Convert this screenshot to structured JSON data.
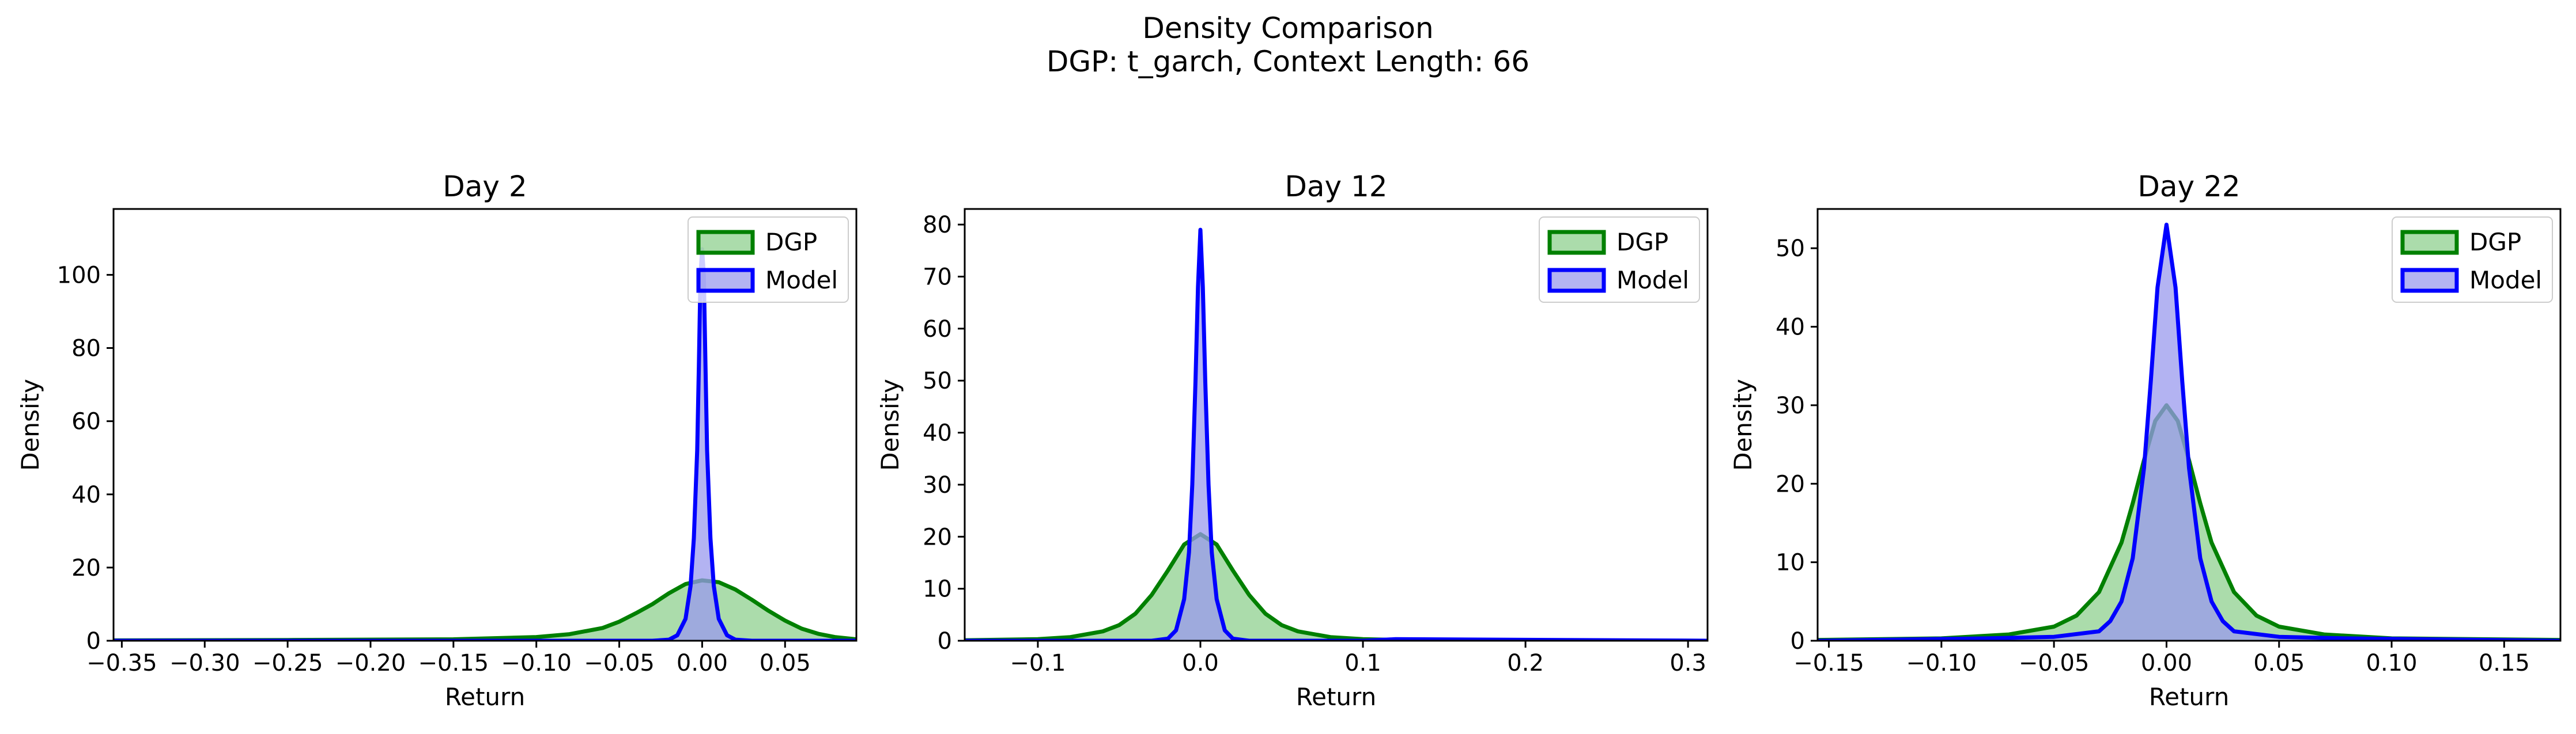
{
  "figure": {
    "title_line1": "Density Comparison",
    "title_line2": "DGP: t_garch, Context Length: 66"
  },
  "colors": {
    "dgp_line": "#008000",
    "dgp_fill": "#8fd08f",
    "model_line": "#0000ff",
    "model_fill": "#9999ee"
  },
  "chart_data": [
    {
      "type": "area",
      "title": "Day 2",
      "xlabel": "Return",
      "ylabel": "Density",
      "xlim": [
        -0.355,
        0.093
      ],
      "ylim": [
        0,
        118
      ],
      "xticks": [
        -0.35,
        -0.3,
        -0.25,
        -0.2,
        -0.15,
        -0.1,
        -0.05,
        0.0,
        0.05
      ],
      "xtick_labels": [
        "−0.35",
        "−0.30",
        "−0.25",
        "−0.20",
        "−0.15",
        "−0.10",
        "−0.05",
        "0.00",
        "0.05"
      ],
      "yticks": [
        0,
        20,
        40,
        60,
        80,
        100
      ],
      "ytick_labels": [
        "0",
        "20",
        "40",
        "60",
        "80",
        "100"
      ],
      "legend": "top-right",
      "series": [
        {
          "name": "DGP",
          "x": [
            -0.355,
            -0.25,
            -0.15,
            -0.1,
            -0.08,
            -0.06,
            -0.05,
            -0.04,
            -0.03,
            -0.02,
            -0.01,
            0.0,
            0.01,
            0.02,
            0.03,
            0.04,
            0.05,
            0.06,
            0.07,
            0.08,
            0.093
          ],
          "y": [
            0.1,
            0.2,
            0.4,
            1.0,
            1.8,
            3.5,
            5.2,
            7.5,
            10.0,
            13.0,
            15.5,
            16.5,
            16.0,
            14.0,
            11.2,
            8.2,
            5.5,
            3.3,
            1.9,
            1.0,
            0.4
          ]
        },
        {
          "name": "Model",
          "x": [
            -0.355,
            -0.03,
            -0.02,
            -0.015,
            -0.01,
            -0.007,
            -0.005,
            -0.003,
            -0.002,
            -0.001,
            0.0,
            0.001,
            0.002,
            0.003,
            0.005,
            0.007,
            0.01,
            0.015,
            0.02,
            0.03,
            0.093
          ],
          "y": [
            0.0,
            0.0,
            0.3,
            1.5,
            6.0,
            15.0,
            28.0,
            52.0,
            75.0,
            100.0,
            107.0,
            100.0,
            75.0,
            52.0,
            28.0,
            15.0,
            6.0,
            1.5,
            0.3,
            0.0,
            0.0
          ]
        }
      ]
    },
    {
      "type": "area",
      "title": "Day 12",
      "xlabel": "Return",
      "ylabel": "Density",
      "xlim": [
        -0.145,
        0.312
      ],
      "ylim": [
        0,
        83
      ],
      "xticks": [
        -0.1,
        0.0,
        0.1,
        0.2,
        0.3
      ],
      "xtick_labels": [
        "−0.1",
        "0.0",
        "0.1",
        "0.2",
        "0.3"
      ],
      "yticks": [
        0,
        10,
        20,
        30,
        40,
        50,
        60,
        70,
        80
      ],
      "ytick_labels": [
        "0",
        "10",
        "20",
        "30",
        "40",
        "50",
        "60",
        "70",
        "80"
      ],
      "legend": "top-right",
      "series": [
        {
          "name": "DGP",
          "x": [
            -0.145,
            -0.1,
            -0.08,
            -0.06,
            -0.05,
            -0.04,
            -0.03,
            -0.02,
            -0.01,
            0.0,
            0.01,
            0.02,
            0.03,
            0.04,
            0.05,
            0.06,
            0.08,
            0.1,
            0.12,
            0.2,
            0.312
          ],
          "y": [
            0.1,
            0.3,
            0.7,
            1.8,
            3.0,
            5.2,
            8.8,
            13.5,
            18.5,
            20.5,
            18.5,
            13.5,
            8.8,
            5.2,
            3.0,
            1.8,
            0.7,
            0.3,
            0.15,
            0.05,
            0.0
          ]
        },
        {
          "name": "Model",
          "x": [
            -0.145,
            -0.03,
            -0.02,
            -0.015,
            -0.01,
            -0.007,
            -0.005,
            -0.003,
            -0.0015,
            0.0,
            0.0015,
            0.003,
            0.005,
            0.007,
            0.01,
            0.015,
            0.02,
            0.03,
            0.1,
            0.12,
            0.312
          ],
          "y": [
            0.0,
            0.0,
            0.4,
            2.0,
            8.0,
            17.0,
            30.0,
            50.0,
            68.0,
            79.0,
            68.0,
            50.0,
            30.0,
            17.0,
            8.0,
            2.0,
            0.4,
            0.0,
            0.0,
            0.3,
            0.0
          ]
        }
      ]
    },
    {
      "type": "area",
      "title": "Day 22",
      "xlabel": "Return",
      "ylabel": "Density",
      "xlim": [
        -0.155,
        0.175
      ],
      "ylim": [
        0,
        55
      ],
      "xticks": [
        -0.15,
        -0.1,
        -0.05,
        0.0,
        0.05,
        0.1,
        0.15
      ],
      "xtick_labels": [
        "−0.15",
        "−0.10",
        "−0.05",
        "0.00",
        "0.05",
        "0.10",
        "0.15"
      ],
      "yticks": [
        0,
        10,
        20,
        30,
        40,
        50
      ],
      "ytick_labels": [
        "0",
        "10",
        "20",
        "30",
        "40",
        "50"
      ],
      "legend": "top-right",
      "series": [
        {
          "name": "DGP",
          "x": [
            -0.155,
            -0.1,
            -0.07,
            -0.05,
            -0.04,
            -0.03,
            -0.02,
            -0.015,
            -0.01,
            -0.005,
            0.0,
            0.005,
            0.01,
            0.015,
            0.02,
            0.03,
            0.04,
            0.05,
            0.07,
            0.1,
            0.175
          ],
          "y": [
            0.1,
            0.3,
            0.8,
            1.8,
            3.2,
            6.2,
            12.5,
            17.5,
            23.0,
            28.0,
            30.0,
            28.0,
            23.0,
            17.5,
            12.5,
            6.2,
            3.2,
            1.8,
            0.8,
            0.3,
            0.1
          ]
        },
        {
          "name": "Model",
          "x": [
            -0.155,
            -0.08,
            -0.05,
            -0.03,
            -0.025,
            -0.02,
            -0.015,
            -0.01,
            -0.007,
            -0.004,
            0.0,
            0.004,
            0.007,
            0.01,
            0.015,
            0.02,
            0.025,
            0.03,
            0.05,
            0.08,
            0.175
          ],
          "y": [
            0.0,
            0.3,
            0.5,
            1.2,
            2.5,
            5.0,
            10.5,
            22.0,
            33.0,
            45.0,
            53.0,
            45.0,
            33.0,
            22.0,
            10.5,
            5.0,
            2.5,
            1.2,
            0.5,
            0.3,
            0.0
          ]
        }
      ]
    }
  ]
}
